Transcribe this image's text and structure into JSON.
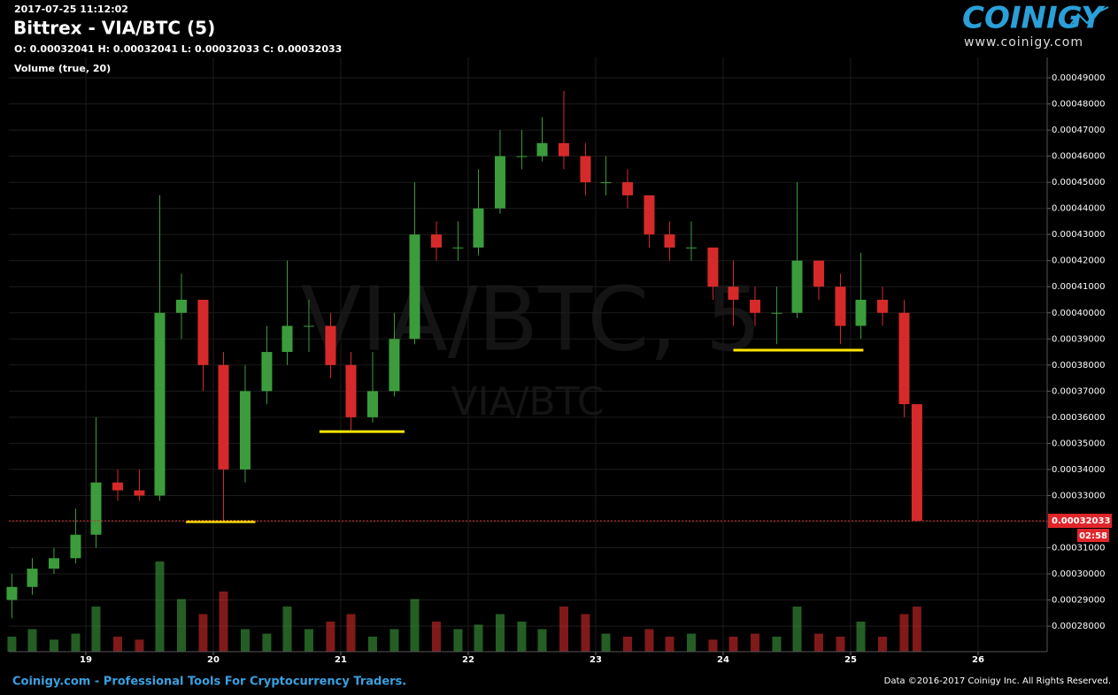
{
  "header": {
    "timestamp": "2017-07-25 11:12:02",
    "title": "Bittrex - VIA/BTC (5)",
    "ohlc": "O: 0.00032041 H: 0.00032041 L: 0.00032033 C: 0.00032033",
    "indicator": "Volume (true, 20)"
  },
  "logo": {
    "name": "COINIGY",
    "url": "www.coinigy.com"
  },
  "footer": {
    "left": "Coinigy.com - Professional Tools For Cryptocurrency Traders.",
    "right": "Data ©2016-2017 Coinigy Inc. All Rights Reserved."
  },
  "chart_data": {
    "type": "candlestick",
    "watermark": "VIA/BTC, 5",
    "watermark_pair": "VIA/BTC",
    "x": [
      18.42,
      18.58,
      18.75,
      18.92,
      19.08,
      19.25,
      19.42,
      19.58,
      19.75,
      19.92,
      20.08,
      20.25,
      20.42,
      20.58,
      20.75,
      20.92,
      21.08,
      21.25,
      21.42,
      21.58,
      21.75,
      21.92,
      22.08,
      22.25,
      22.42,
      22.58,
      22.75,
      22.92,
      23.08,
      23.25,
      23.42,
      23.58,
      23.75,
      23.92,
      24.08,
      24.25,
      24.42,
      24.58,
      24.75,
      24.92,
      25.08,
      25.25,
      25.42,
      25.52
    ],
    "open": [
      0.00029,
      0.000295,
      0.000302,
      0.000306,
      0.000315,
      0.000335,
      0.000332,
      0.00033,
      0.0004,
      0.000405,
      0.00038,
      0.00034,
      0.00037,
      0.000385,
      0.000395,
      0.000395,
      0.00038,
      0.00036,
      0.00037,
      0.00039,
      0.00043,
      0.000425,
      0.000425,
      0.00044,
      0.00046,
      0.00046,
      0.000465,
      0.00046,
      0.00045,
      0.00045,
      0.000445,
      0.00043,
      0.000425,
      0.000425,
      0.00041,
      0.000405,
      0.0004,
      0.0004,
      0.00042,
      0.00041,
      0.000395,
      0.000405,
      0.0004,
      0.000365
    ],
    "high": [
      0.0003,
      0.000306,
      0.00031,
      0.000325,
      0.00036,
      0.00034,
      0.00034,
      0.000445,
      0.000415,
      0.000405,
      0.000385,
      0.00038,
      0.000395,
      0.00042,
      0.000405,
      0.0004,
      0.000385,
      0.000385,
      0.0004,
      0.00045,
      0.000435,
      0.000435,
      0.000455,
      0.00047,
      0.00047,
      0.000475,
      0.000485,
      0.000465,
      0.00046,
      0.000455,
      0.000445,
      0.000435,
      0.000435,
      0.000425,
      0.00042,
      0.00041,
      0.00041,
      0.00045,
      0.00042,
      0.000415,
      0.000423,
      0.00041,
      0.000405,
      0.000365
    ],
    "low": [
      0.000283,
      0.000292,
      0.0003,
      0.000304,
      0.00031,
      0.000328,
      0.000328,
      0.000328,
      0.00039,
      0.00037,
      0.00032,
      0.000335,
      0.000365,
      0.00038,
      0.000385,
      0.000375,
      0.000355,
      0.000358,
      0.000368,
      0.000388,
      0.00042,
      0.00042,
      0.000422,
      0.000438,
      0.000455,
      0.000458,
      0.000455,
      0.000445,
      0.000445,
      0.00044,
      0.000425,
      0.00042,
      0.00042,
      0.000405,
      0.000395,
      0.000395,
      0.000388,
      0.000398,
      0.000405,
      0.000388,
      0.00039,
      0.000395,
      0.00036,
      0.00032
    ],
    "close": [
      0.000295,
      0.000302,
      0.000306,
      0.000315,
      0.000335,
      0.000332,
      0.00033,
      0.0004,
      0.000405,
      0.00038,
      0.00034,
      0.00037,
      0.000385,
      0.000395,
      0.000395,
      0.00038,
      0.00036,
      0.00037,
      0.00039,
      0.00043,
      0.000425,
      0.000425,
      0.00044,
      0.00046,
      0.00046,
      0.000465,
      0.00046,
      0.00045,
      0.00045,
      0.000445,
      0.00043,
      0.000425,
      0.000425,
      0.00041,
      0.000405,
      0.0004,
      0.0004,
      0.00042,
      0.00041,
      0.000395,
      0.000405,
      0.0004,
      0.000365,
      0.00032033
    ],
    "volume": [
      10,
      15,
      8,
      12,
      30,
      10,
      8,
      60,
      35,
      25,
      40,
      15,
      12,
      30,
      15,
      20,
      25,
      10,
      15,
      35,
      20,
      15,
      18,
      25,
      20,
      15,
      30,
      25,
      12,
      10,
      15,
      10,
      12,
      8,
      10,
      12,
      10,
      30,
      12,
      10,
      20,
      10,
      25,
      30
    ],
    "volume_lim": [
      0,
      100
    ],
    "up_color": "#3c9c3c",
    "down_color": "#d62a2a",
    "support_color": "#ffe600",
    "xlim": [
      18.396,
      26.542
    ],
    "ylim": [
      0.0002702,
      0.0004978
    ],
    "xticks": [
      19,
      20,
      21,
      22,
      23,
      24,
      25,
      26
    ],
    "yticks": [
      {
        "value": 0.00028,
        "label": "0.00028000"
      },
      {
        "value": 0.00029,
        "label": "0.00029000"
      },
      {
        "value": 0.0003,
        "label": "0.00030000"
      },
      {
        "value": 0.00031,
        "label": "0.00031000"
      },
      {
        "value": 0.00032,
        "label": "0.00032000"
      },
      {
        "value": 0.00033,
        "label": "0.00033000"
      },
      {
        "value": 0.00034,
        "label": "0.00034000"
      },
      {
        "value": 0.00035,
        "label": "0.00035000"
      },
      {
        "value": 0.00036,
        "label": "0.00036000"
      },
      {
        "value": 0.00037,
        "label": "0.00037000"
      },
      {
        "value": 0.00038,
        "label": "0.00038000"
      },
      {
        "value": 0.00039,
        "label": "0.00039000"
      },
      {
        "value": 0.0004,
        "label": "0.00040000"
      },
      {
        "value": 0.00041,
        "label": "0.00041000"
      },
      {
        "value": 0.00042,
        "label": "0.00042000"
      },
      {
        "value": 0.00043,
        "label": "0.00043000"
      },
      {
        "value": 0.00044,
        "label": "0.00044000"
      },
      {
        "value": 0.00045,
        "label": "0.00045000"
      },
      {
        "value": 0.00046,
        "label": "0.00046000"
      },
      {
        "value": 0.00047,
        "label": "0.00047000"
      },
      {
        "value": 0.00048,
        "label": "0.00048000"
      },
      {
        "value": 0.00049,
        "label": "0.00049000"
      }
    ],
    "grid": true,
    "last_price": {
      "value": 0.00032033,
      "label": "0.00032033"
    },
    "countdown": "02:58",
    "support_lines": [
      {
        "price": 0.00032,
        "x": [
          19.785,
          20.33
        ]
      },
      {
        "price": 0.0003545,
        "x": [
          20.833,
          21.5
        ]
      },
      {
        "price": 0.0003857,
        "x": [
          24.08,
          25.1
        ]
      }
    ]
  }
}
